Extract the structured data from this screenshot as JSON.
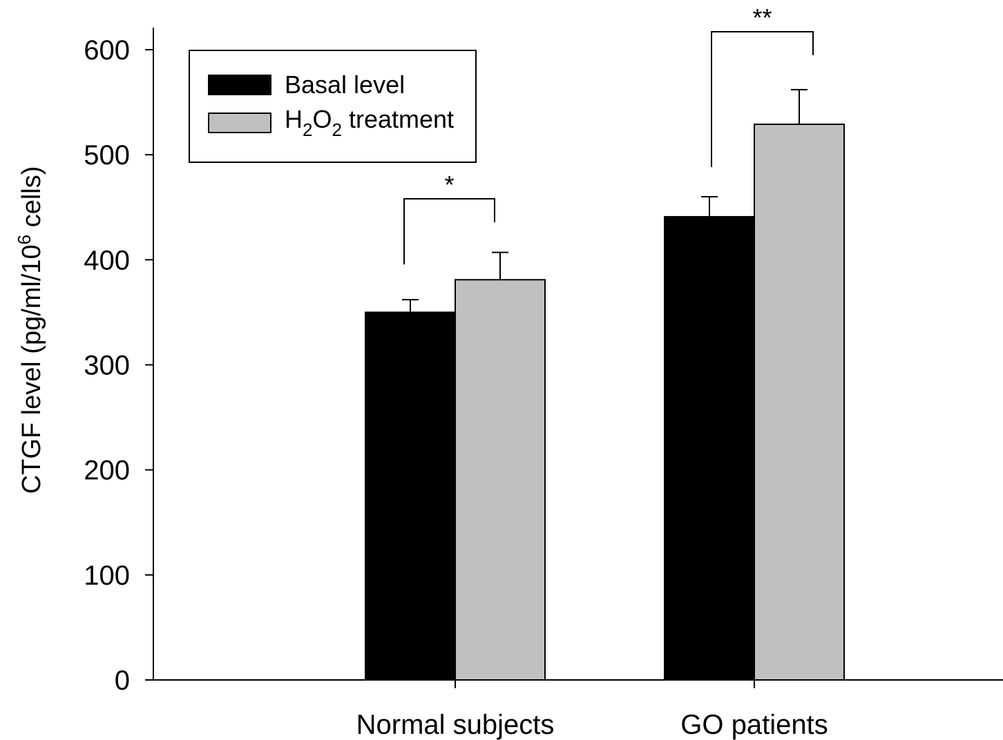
{
  "chart_data": {
    "type": "bar",
    "categories": [
      "Normal subjects",
      "GO patients"
    ],
    "series": [
      {
        "name": "Basal level",
        "values": [
          350,
          441
        ],
        "errors": [
          12,
          19
        ],
        "color": "#000000"
      },
      {
        "name": "H2O2 treatment",
        "values": [
          381,
          529
        ],
        "errors": [
          26,
          33
        ],
        "color": "#c0c0c0"
      }
    ],
    "ylabel": "CTGF level (pg/ml/10^6 cells)",
    "ylim": [
      0,
      620
    ],
    "yticks": [
      0,
      100,
      200,
      300,
      400,
      500,
      600
    ],
    "legend_position": "top-left",
    "significance": [
      {
        "category": "Normal subjects",
        "label": "*"
      },
      {
        "category": "GO patients",
        "label": "**"
      }
    ]
  },
  "legend": {
    "basal": "Basal level",
    "h2o2_prefix": "H",
    "h2o2_sub1": "2",
    "h2o2_mid": "O",
    "h2o2_sub2": "2",
    "h2o2_suffix": " treatment"
  },
  "ylabel_parts": {
    "main": "CTGF level (pg/ml/10",
    "sup": "6",
    "end": " cells)"
  }
}
